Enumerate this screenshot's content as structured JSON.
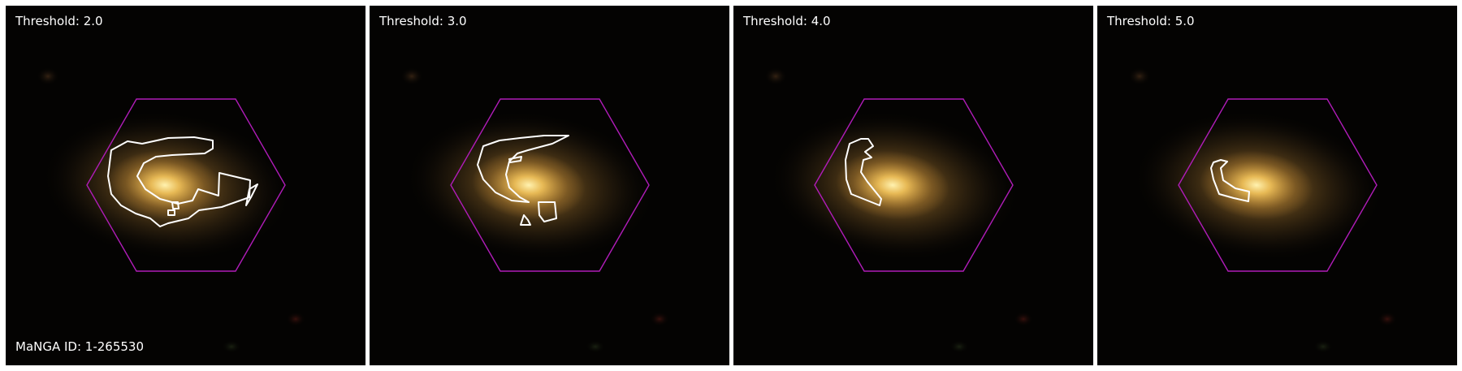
{
  "figure": {
    "panels": [
      {
        "threshold_label": "Threshold: 2.0",
        "threshold": 2.0,
        "contours": 4
      },
      {
        "threshold_label": "Threshold: 3.0",
        "threshold": 3.0,
        "contours": 4
      },
      {
        "threshold_label": "Threshold: 4.0",
        "threshold": 4.0,
        "contours": 1
      },
      {
        "threshold_label": "Threshold: 5.0",
        "threshold": 5.0,
        "contours": 1
      }
    ],
    "id_label": "MaNGA ID: 1-265530",
    "colors": {
      "background": "#040302",
      "hexagon": "#b01cb8",
      "contour": "#ffffff",
      "galaxy_core": "#f4c75a",
      "galaxy_halo": "#6b4a1e",
      "separator": "#ffffff"
    }
  }
}
